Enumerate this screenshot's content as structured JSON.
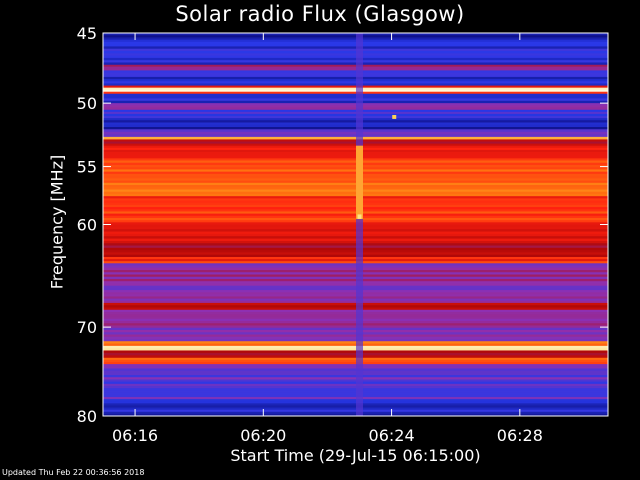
{
  "chart_data": {
    "type": "heatmap",
    "title": "Solar radio Flux (Glasgow)",
    "ylabel": "Frequency [MHz]",
    "xlabel": "Start Time (29-Jul-15 06:15:00)",
    "y_scale": "log",
    "ylim": [
      45,
      80
    ],
    "y_inverted": true,
    "y_ticks": [
      45,
      50,
      55,
      60,
      70,
      80
    ],
    "y_tick_labels": [
      "45",
      "50",
      "55",
      "60",
      "70",
      "80"
    ],
    "xlim": [
      "06:15:00",
      "06:30:45"
    ],
    "x_ticks": [
      "06:16",
      "06:20",
      "06:24",
      "06:28"
    ],
    "x_tick_labels": [
      "06:16",
      "06:20",
      "06:24",
      "06:28"
    ],
    "colormap": [
      "#0a0a78",
      "#2838e8",
      "#9030b0",
      "#b00808",
      "#ff2010",
      "#ff7a10",
      "#ffd85a",
      "#fff8dc"
    ],
    "bands": [
      {
        "f0": 45.0,
        "f1": 45.6,
        "level": 0.05
      },
      {
        "f0": 45.6,
        "f1": 47.2,
        "level": 0.12
      },
      {
        "f0": 47.2,
        "f1": 47.6,
        "level": 0.35
      },
      {
        "f0": 47.6,
        "f1": 48.7,
        "level": 0.12
      },
      {
        "f0": 48.7,
        "f1": 48.85,
        "level": 0.55
      },
      {
        "f0": 48.85,
        "f1": 49.15,
        "level": 0.98
      },
      {
        "f0": 49.15,
        "f1": 49.3,
        "level": 0.55
      },
      {
        "f0": 49.3,
        "f1": 50.0,
        "level": 0.12
      },
      {
        "f0": 50.0,
        "f1": 50.5,
        "level": 0.32
      },
      {
        "f0": 50.5,
        "f1": 51.3,
        "level": 0.14
      },
      {
        "f0": 51.3,
        "f1": 52.0,
        "level": 0.06
      },
      {
        "f0": 52.0,
        "f1": 52.6,
        "level": 0.2
      },
      {
        "f0": 52.6,
        "f1": 52.8,
        "level": 0.85
      },
      {
        "f0": 52.8,
        "f1": 53.3,
        "level": 0.45
      },
      {
        "f0": 53.3,
        "f1": 54.5,
        "level": 0.55
      },
      {
        "f0": 54.5,
        "f1": 57.5,
        "level": 0.68
      },
      {
        "f0": 57.5,
        "f1": 60.0,
        "level": 0.6
      },
      {
        "f0": 60.0,
        "f1": 61.5,
        "level": 0.5
      },
      {
        "f0": 61.5,
        "f1": 63.0,
        "level": 0.42
      },
      {
        "f0": 63.0,
        "f1": 63.6,
        "level": 0.58
      },
      {
        "f0": 63.6,
        "f1": 66.0,
        "level": 0.3
      },
      {
        "f0": 66.0,
        "f1": 67.5,
        "level": 0.25
      },
      {
        "f0": 67.5,
        "f1": 68.2,
        "level": 0.5
      },
      {
        "f0": 68.2,
        "f1": 71.5,
        "level": 0.28
      },
      {
        "f0": 71.5,
        "f1": 72.0,
        "level": 0.7
      },
      {
        "f0": 72.0,
        "f1": 72.5,
        "level": 0.97
      },
      {
        "f0": 72.5,
        "f1": 73.3,
        "level": 0.45
      },
      {
        "f0": 73.3,
        "f1": 74.0,
        "level": 0.62
      },
      {
        "f0": 74.0,
        "f1": 78.0,
        "level": 0.22
      },
      {
        "f0": 78.0,
        "f1": 80.0,
        "level": 0.1
      }
    ],
    "features": [
      {
        "kind": "burst_column",
        "time": "06:23:00",
        "f0": 45,
        "f1": 80,
        "level": 0.2
      },
      {
        "kind": "burst_column",
        "time": "06:23:00",
        "f0": 53.3,
        "f1": 59.5,
        "level": 0.78
      },
      {
        "kind": "spot",
        "time": "06:23:00",
        "f0": 59.1,
        "f1": 59.5,
        "level": 0.9
      },
      {
        "kind": "spot",
        "time": "06:24:05",
        "f0": 50.9,
        "f1": 51.2,
        "level": 0.85
      }
    ]
  },
  "footer": {
    "updated": "Updated Thu Feb 22 00:36:56 2018"
  }
}
